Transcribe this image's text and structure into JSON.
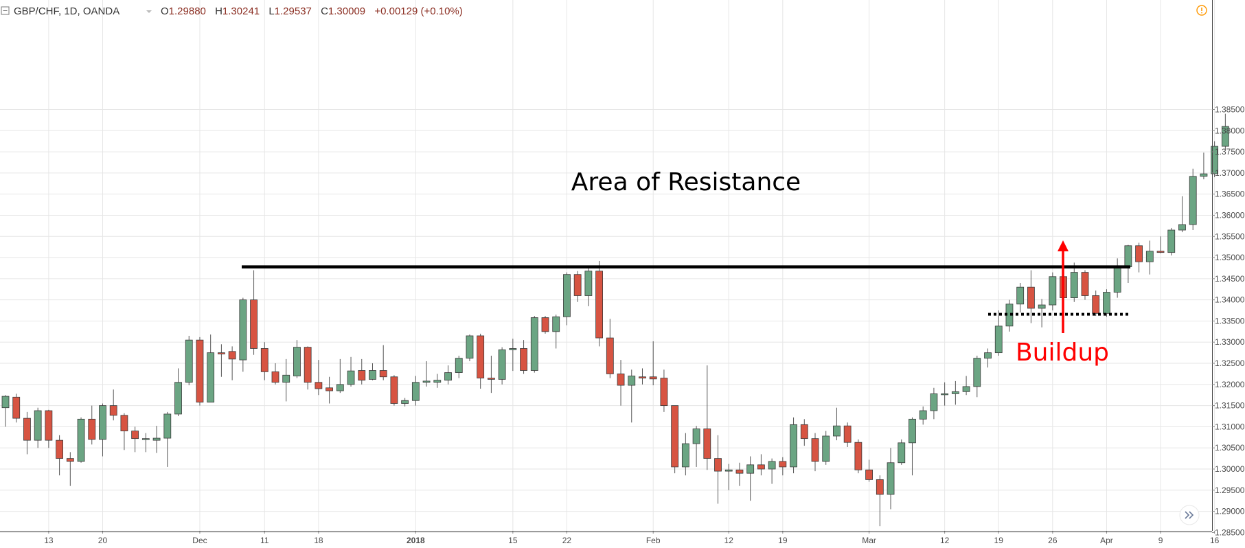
{
  "header": {
    "symbol": "GBP/CHF, 1D, OANDA",
    "open_label": "O",
    "open": "1.29880",
    "high_label": "H",
    "high": "1.30241",
    "low_label": "L",
    "low": "1.29537",
    "close_label": "C",
    "close": "1.30009",
    "change": "+0.00129 (+0.10%)"
  },
  "colors": {
    "up": "#6ba583",
    "down": "#d75442",
    "wick": "#555555",
    "grid": "#e6e6e6",
    "header_value": "#8b2e22",
    "annotation_red": "#ff0000",
    "alert": "#ff9800"
  },
  "icons": {
    "collapse": "collapse-icon",
    "alert": "alert-icon",
    "scroll": "chevron-double-right-icon"
  },
  "annotations": {
    "resistance_label": "Area of Resistance",
    "resistance_level": 1.3478,
    "buildup_label": "Buildup",
    "buildup_level": 1.3366
  },
  "chart_data": {
    "type": "candlestick",
    "title": "GBP/CHF, 1D, OANDA",
    "ylim": [
      1.282,
      1.388
    ],
    "y_ticks": [
      "1.38500",
      "1.38000",
      "1.37500",
      "1.37000",
      "1.36500",
      "1.36000",
      "1.35500",
      "1.35000",
      "1.34500",
      "1.34000",
      "1.33500",
      "1.33000",
      "1.32500",
      "1.32000",
      "1.31500",
      "1.31000",
      "1.30500",
      "1.30000",
      "1.29500",
      "1.29000",
      "1.28500"
    ],
    "x_ticks": [
      {
        "label": "13",
        "index": 4,
        "bold": false
      },
      {
        "label": "20",
        "index": 9,
        "bold": false
      },
      {
        "label": "Dec",
        "index": 18,
        "bold": false
      },
      {
        "label": "11",
        "index": 24,
        "bold": false
      },
      {
        "label": "18",
        "index": 29,
        "bold": false
      },
      {
        "label": "2018",
        "index": 38,
        "bold": true
      },
      {
        "label": "15",
        "index": 47,
        "bold": false
      },
      {
        "label": "22",
        "index": 52,
        "bold": false
      },
      {
        "label": "Feb",
        "index": 60,
        "bold": false
      },
      {
        "label": "12",
        "index": 67,
        "bold": false
      },
      {
        "label": "19",
        "index": 72,
        "bold": false
      },
      {
        "label": "Mar",
        "index": 80,
        "bold": false
      },
      {
        "label": "12",
        "index": 87,
        "bold": false
      },
      {
        "label": "19",
        "index": 92,
        "bold": false
      },
      {
        "label": "26",
        "index": 97,
        "bold": false
      },
      {
        "label": "Apr",
        "index": 102,
        "bold": false
      },
      {
        "label": "9",
        "index": 107,
        "bold": false
      },
      {
        "label": "16",
        "index": 112,
        "bold": false
      }
    ],
    "candles": [
      {
        "o": 1.3145,
        "h": 1.3175,
        "l": 1.31,
        "c": 1.3172
      },
      {
        "o": 1.317,
        "h": 1.3178,
        "l": 1.311,
        "c": 1.312
      },
      {
        "o": 1.312,
        "h": 1.3135,
        "l": 1.3035,
        "c": 1.3068
      },
      {
        "o": 1.3068,
        "h": 1.3145,
        "l": 1.305,
        "c": 1.3138
      },
      {
        "o": 1.3138,
        "h": 1.314,
        "l": 1.305,
        "c": 1.3068
      },
      {
        "o": 1.3068,
        "h": 1.308,
        "l": 1.2985,
        "c": 1.3025
      },
      {
        "o": 1.3025,
        "h": 1.304,
        "l": 1.296,
        "c": 1.3018
      },
      {
        "o": 1.3018,
        "h": 1.3122,
        "l": 1.3015,
        "c": 1.3118
      },
      {
        "o": 1.3118,
        "h": 1.315,
        "l": 1.3058,
        "c": 1.307
      },
      {
        "o": 1.307,
        "h": 1.3155,
        "l": 1.303,
        "c": 1.315
      },
      {
        "o": 1.315,
        "h": 1.3188,
        "l": 1.3115,
        "c": 1.3127
      },
      {
        "o": 1.3127,
        "h": 1.3132,
        "l": 1.3045,
        "c": 1.309
      },
      {
        "o": 1.309,
        "h": 1.31,
        "l": 1.304,
        "c": 1.3072
      },
      {
        "o": 1.307,
        "h": 1.3085,
        "l": 1.304,
        "c": 1.3072
      },
      {
        "o": 1.3068,
        "h": 1.3102,
        "l": 1.3038,
        "c": 1.3073
      },
      {
        "o": 1.3073,
        "h": 1.3135,
        "l": 1.3005,
        "c": 1.313
      },
      {
        "o": 1.313,
        "h": 1.3238,
        "l": 1.3125,
        "c": 1.3205
      },
      {
        "o": 1.3205,
        "h": 1.3315,
        "l": 1.3198,
        "c": 1.3305
      },
      {
        "o": 1.3305,
        "h": 1.3312,
        "l": 1.315,
        "c": 1.3158
      },
      {
        "o": 1.3158,
        "h": 1.3318,
        "l": 1.3158,
        "c": 1.3275
      },
      {
        "o": 1.3275,
        "h": 1.3295,
        "l": 1.3218,
        "c": 1.3272
      },
      {
        "o": 1.3278,
        "h": 1.329,
        "l": 1.321,
        "c": 1.326
      },
      {
        "o": 1.3258,
        "h": 1.3405,
        "l": 1.323,
        "c": 1.34
      },
      {
        "o": 1.34,
        "h": 1.347,
        "l": 1.327,
        "c": 1.3285
      },
      {
        "o": 1.3285,
        "h": 1.33,
        "l": 1.321,
        "c": 1.323
      },
      {
        "o": 1.323,
        "h": 1.325,
        "l": 1.32,
        "c": 1.3205
      },
      {
        "o": 1.3205,
        "h": 1.326,
        "l": 1.316,
        "c": 1.3222
      },
      {
        "o": 1.322,
        "h": 1.3305,
        "l": 1.3215,
        "c": 1.3288
      },
      {
        "o": 1.3288,
        "h": 1.329,
        "l": 1.3188,
        "c": 1.3205
      },
      {
        "o": 1.3205,
        "h": 1.3258,
        "l": 1.3175,
        "c": 1.319
      },
      {
        "o": 1.3192,
        "h": 1.3218,
        "l": 1.3155,
        "c": 1.3185
      },
      {
        "o": 1.3185,
        "h": 1.326,
        "l": 1.318,
        "c": 1.32
      },
      {
        "o": 1.32,
        "h": 1.3265,
        "l": 1.3195,
        "c": 1.3232
      },
      {
        "o": 1.3233,
        "h": 1.326,
        "l": 1.32,
        "c": 1.321
      },
      {
        "o": 1.3212,
        "h": 1.325,
        "l": 1.321,
        "c": 1.3233
      },
      {
        "o": 1.3233,
        "h": 1.3293,
        "l": 1.321,
        "c": 1.3218
      },
      {
        "o": 1.3218,
        "h": 1.3222,
        "l": 1.315,
        "c": 1.3155
      },
      {
        "o": 1.3155,
        "h": 1.3168,
        "l": 1.3148,
        "c": 1.3162
      },
      {
        "o": 1.3162,
        "h": 1.322,
        "l": 1.315,
        "c": 1.3205
      },
      {
        "o": 1.3205,
        "h": 1.3255,
        "l": 1.3195,
        "c": 1.3208
      },
      {
        "o": 1.3205,
        "h": 1.3225,
        "l": 1.3192,
        "c": 1.321
      },
      {
        "o": 1.321,
        "h": 1.3245,
        "l": 1.32,
        "c": 1.3228
      },
      {
        "o": 1.3228,
        "h": 1.3268,
        "l": 1.3215,
        "c": 1.3262
      },
      {
        "o": 1.3262,
        "h": 1.3318,
        "l": 1.3255,
        "c": 1.3315
      },
      {
        "o": 1.3315,
        "h": 1.332,
        "l": 1.319,
        "c": 1.3215
      },
      {
        "o": 1.3215,
        "h": 1.3268,
        "l": 1.318,
        "c": 1.3212
      },
      {
        "o": 1.3212,
        "h": 1.3288,
        "l": 1.32,
        "c": 1.3282
      },
      {
        "o": 1.3282,
        "h": 1.3308,
        "l": 1.3232,
        "c": 1.3285
      },
      {
        "o": 1.3285,
        "h": 1.3305,
        "l": 1.3225,
        "c": 1.3233
      },
      {
        "o": 1.3233,
        "h": 1.3362,
        "l": 1.3228,
        "c": 1.3358
      },
      {
        "o": 1.3358,
        "h": 1.3362,
        "l": 1.332,
        "c": 1.3325
      },
      {
        "o": 1.3325,
        "h": 1.3365,
        "l": 1.3285,
        "c": 1.336
      },
      {
        "o": 1.336,
        "h": 1.3465,
        "l": 1.334,
        "c": 1.346
      },
      {
        "o": 1.346,
        "h": 1.3468,
        "l": 1.3395,
        "c": 1.341
      },
      {
        "o": 1.341,
        "h": 1.348,
        "l": 1.3385,
        "c": 1.3468
      },
      {
        "o": 1.3468,
        "h": 1.3492,
        "l": 1.329,
        "c": 1.331
      },
      {
        "o": 1.331,
        "h": 1.3355,
        "l": 1.3215,
        "c": 1.3225
      },
      {
        "o": 1.3225,
        "h": 1.3258,
        "l": 1.315,
        "c": 1.3198
      },
      {
        "o": 1.3198,
        "h": 1.3235,
        "l": 1.311,
        "c": 1.322
      },
      {
        "o": 1.3218,
        "h": 1.3238,
        "l": 1.32,
        "c": 1.3215
      },
      {
        "o": 1.3218,
        "h": 1.3302,
        "l": 1.3198,
        "c": 1.3213
      },
      {
        "o": 1.3215,
        "h": 1.3235,
        "l": 1.3135,
        "c": 1.315
      },
      {
        "o": 1.315,
        "h": 1.315,
        "l": 1.299,
        "c": 1.3005
      },
      {
        "o": 1.3005,
        "h": 1.3085,
        "l": 1.2985,
        "c": 1.306
      },
      {
        "o": 1.306,
        "h": 1.3102,
        "l": 1.3005,
        "c": 1.3095
      },
      {
        "o": 1.3095,
        "h": 1.3245,
        "l": 1.2998,
        "c": 1.3025
      },
      {
        "o": 1.3025,
        "h": 1.308,
        "l": 1.2918,
        "c": 1.2995
      },
      {
        "o": 1.2995,
        "h": 1.3012,
        "l": 1.295,
        "c": 1.2998
      },
      {
        "o": 1.2998,
        "h": 1.3015,
        "l": 1.296,
        "c": 1.299
      },
      {
        "o": 1.299,
        "h": 1.303,
        "l": 1.2925,
        "c": 1.301
      },
      {
        "o": 1.301,
        "h": 1.3035,
        "l": 1.2985,
        "c": 1.3
      },
      {
        "o": 1.3,
        "h": 1.3025,
        "l": 1.2965,
        "c": 1.3018
      },
      {
        "o": 1.3018,
        "h": 1.3028,
        "l": 1.2985,
        "c": 1.3005
      },
      {
        "o": 1.3005,
        "h": 1.3122,
        "l": 1.299,
        "c": 1.3105
      },
      {
        "o": 1.3105,
        "h": 1.3118,
        "l": 1.3055,
        "c": 1.3072
      },
      {
        "o": 1.3072,
        "h": 1.3085,
        "l": 1.2995,
        "c": 1.3018
      },
      {
        "o": 1.3018,
        "h": 1.309,
        "l": 1.301,
        "c": 1.3078
      },
      {
        "o": 1.3078,
        "h": 1.3145,
        "l": 1.3068,
        "c": 1.3102
      },
      {
        "o": 1.3102,
        "h": 1.311,
        "l": 1.3052,
        "c": 1.3063
      },
      {
        "o": 1.3063,
        "h": 1.307,
        "l": 1.299,
        "c": 1.2998
      },
      {
        "o": 1.2998,
        "h": 1.3022,
        "l": 1.297,
        "c": 1.2975
      },
      {
        "o": 1.2975,
        "h": 1.2985,
        "l": 1.2865,
        "c": 1.294
      },
      {
        "o": 1.294,
        "h": 1.305,
        "l": 1.2905,
        "c": 1.3015
      },
      {
        "o": 1.3015,
        "h": 1.307,
        "l": 1.301,
        "c": 1.3062
      },
      {
        "o": 1.3062,
        "h": 1.3122,
        "l": 1.2985,
        "c": 1.3118
      },
      {
        "o": 1.3118,
        "h": 1.3148,
        "l": 1.3105,
        "c": 1.3138
      },
      {
        "o": 1.3138,
        "h": 1.3192,
        "l": 1.3118,
        "c": 1.3178
      },
      {
        "o": 1.3178,
        "h": 1.3205,
        "l": 1.315,
        "c": 1.3178
      },
      {
        "o": 1.3178,
        "h": 1.3208,
        "l": 1.3152,
        "c": 1.3183
      },
      {
        "o": 1.3183,
        "h": 1.322,
        "l": 1.3175,
        "c": 1.3195
      },
      {
        "o": 1.3195,
        "h": 1.3268,
        "l": 1.317,
        "c": 1.3262
      },
      {
        "o": 1.3262,
        "h": 1.3285,
        "l": 1.324,
        "c": 1.3275
      },
      {
        "o": 1.3275,
        "h": 1.3375,
        "l": 1.3268,
        "c": 1.3338
      },
      {
        "o": 1.3338,
        "h": 1.34,
        "l": 1.3325,
        "c": 1.339
      },
      {
        "o": 1.339,
        "h": 1.344,
        "l": 1.337,
        "c": 1.343
      },
      {
        "o": 1.343,
        "h": 1.347,
        "l": 1.3345,
        "c": 1.338
      },
      {
        "o": 1.338,
        "h": 1.3402,
        "l": 1.3335,
        "c": 1.3388
      },
      {
        "o": 1.3388,
        "h": 1.3465,
        "l": 1.3375,
        "c": 1.3455
      },
      {
        "o": 1.3455,
        "h": 1.3465,
        "l": 1.339,
        "c": 1.3405
      },
      {
        "o": 1.3405,
        "h": 1.3488,
        "l": 1.3395,
        "c": 1.3465
      },
      {
        "o": 1.3465,
        "h": 1.347,
        "l": 1.34,
        "c": 1.341
      },
      {
        "o": 1.341,
        "h": 1.3422,
        "l": 1.3362,
        "c": 1.3368
      },
      {
        "o": 1.3368,
        "h": 1.3425,
        "l": 1.336,
        "c": 1.3418
      },
      {
        "o": 1.3418,
        "h": 1.3498,
        "l": 1.3405,
        "c": 1.3478
      },
      {
        "o": 1.3478,
        "h": 1.353,
        "l": 1.344,
        "c": 1.3528
      },
      {
        "o": 1.3528,
        "h": 1.3535,
        "l": 1.3465,
        "c": 1.349
      },
      {
        "o": 1.349,
        "h": 1.354,
        "l": 1.346,
        "c": 1.3515
      },
      {
        "o": 1.3515,
        "h": 1.355,
        "l": 1.351,
        "c": 1.3512
      },
      {
        "o": 1.3512,
        "h": 1.357,
        "l": 1.3505,
        "c": 1.3565
      },
      {
        "o": 1.3565,
        "h": 1.3645,
        "l": 1.356,
        "c": 1.3578
      },
      {
        "o": 1.3578,
        "h": 1.371,
        "l": 1.3565,
        "c": 1.3692
      },
      {
        "o": 1.3692,
        "h": 1.3748,
        "l": 1.3685,
        "c": 1.3698
      },
      {
        "o": 1.3698,
        "h": 1.3775,
        "l": 1.369,
        "c": 1.3763
      },
      {
        "o": 1.3763,
        "h": 1.384,
        "l": 1.3755,
        "c": 1.381
      }
    ]
  }
}
